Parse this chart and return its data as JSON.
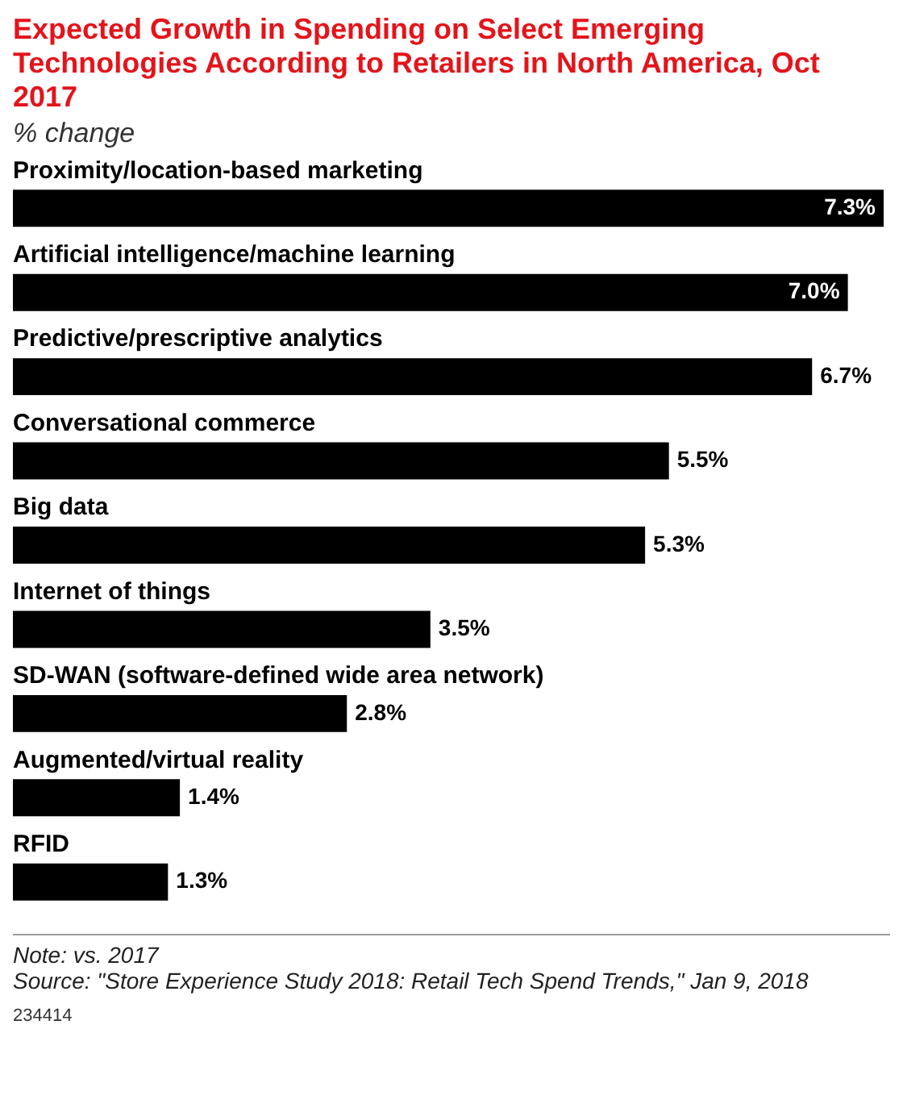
{
  "chart_data": {
    "type": "bar",
    "orientation": "horizontal",
    "title": "Expected Growth in Spending on Select Emerging Technologies According to Retailers in North America, Oct 2017",
    "subtitle": "% change",
    "categories": [
      "Proximity/location-based marketing",
      "Artificial intelligence/machine learning",
      "Predictive/prescriptive analytics",
      "Conversational commerce",
      "Big data",
      "Internet of things",
      "SD-WAN (software-defined wide area network)",
      "Augmented/virtual reality",
      "RFID"
    ],
    "values": [
      7.3,
      7.0,
      6.7,
      5.5,
      5.3,
      3.5,
      2.8,
      1.4,
      1.3
    ],
    "value_labels": [
      "7.3%",
      "7.0%",
      "6.7%",
      "5.5%",
      "5.3%",
      "3.5%",
      "2.8%",
      "1.4%",
      "1.3%"
    ],
    "color": "#000000",
    "tick_labels": false,
    "annotations": [
      "Note: vs. 2017",
      "Source: \"Store Experience Study 2018: Retail Tech Spend Trends,\" Jan 9, 2018",
      "234414"
    ]
  }
}
